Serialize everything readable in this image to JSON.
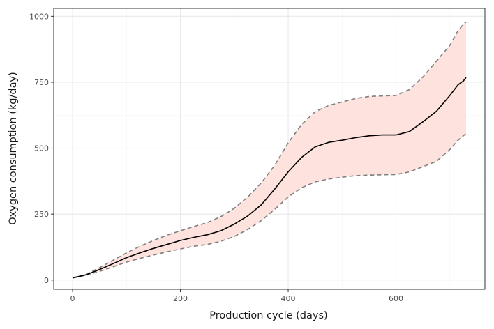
{
  "chart_data": {
    "type": "line",
    "title": "",
    "xlabel": "Production cycle (days)",
    "ylabel": "Oxygen consumption (kg/day)",
    "xlim": [
      -35,
      765
    ],
    "ylim": [
      -35,
      1030
    ],
    "x_ticks": [
      0,
      200,
      400,
      600
    ],
    "x_tick_labels": [
      "0",
      "200",
      "400",
      "600"
    ],
    "y_ticks": [
      0,
      250,
      500,
      750,
      1000
    ],
    "y_tick_labels": [
      "0",
      "250",
      "500",
      "750",
      "1000"
    ],
    "grid": true,
    "legend": "none",
    "colors": {
      "median": "#000000",
      "band_fill": "#fde2de",
      "band_edge": "#7f7f7f",
      "grid_major": "#e8e8e8",
      "grid_minor": "#f4f4f4",
      "panel_border": "#333333"
    },
    "series": [
      {
        "role": "median",
        "style": "solid",
        "x": [
          0,
          25,
          50,
          75,
          100,
          125,
          150,
          175,
          200,
          225,
          250,
          275,
          300,
          325,
          350,
          375,
          400,
          425,
          450,
          475,
          500,
          525,
          550,
          575,
          600,
          625,
          650,
          675,
          700,
          715,
          725,
          730
        ],
        "y": [
          8,
          20,
          40,
          62,
          85,
          103,
          120,
          135,
          150,
          162,
          172,
          187,
          212,
          243,
          285,
          345,
          410,
          465,
          505,
          522,
          530,
          540,
          547,
          550,
          550,
          563,
          600,
          640,
          700,
          740,
          755,
          768
        ]
      },
      {
        "role": "upper bound",
        "style": "dashed",
        "x": [
          0,
          25,
          50,
          75,
          100,
          125,
          150,
          175,
          200,
          225,
          250,
          275,
          300,
          325,
          350,
          375,
          400,
          425,
          450,
          475,
          500,
          525,
          550,
          575,
          600,
          625,
          650,
          675,
          700,
          715,
          725,
          730
        ],
        "y": [
          8,
          22,
          47,
          75,
          103,
          128,
          150,
          170,
          187,
          203,
          218,
          240,
          272,
          315,
          368,
          435,
          520,
          590,
          638,
          662,
          675,
          688,
          696,
          698,
          700,
          722,
          770,
          830,
          890,
          945,
          970,
          978
        ]
      },
      {
        "role": "lower bound",
        "style": "dashed",
        "x": [
          0,
          25,
          50,
          75,
          100,
          125,
          150,
          175,
          200,
          225,
          250,
          275,
          300,
          325,
          350,
          375,
          400,
          425,
          450,
          475,
          500,
          525,
          550,
          575,
          600,
          625,
          650,
          675,
          700,
          715,
          725,
          730
        ],
        "y": [
          8,
          18,
          33,
          50,
          68,
          82,
          95,
          107,
          118,
          128,
          135,
          147,
          165,
          192,
          225,
          268,
          315,
          350,
          372,
          383,
          390,
          396,
          398,
          399,
          400,
          410,
          430,
          450,
          495,
          530,
          547,
          555
        ]
      }
    ]
  }
}
